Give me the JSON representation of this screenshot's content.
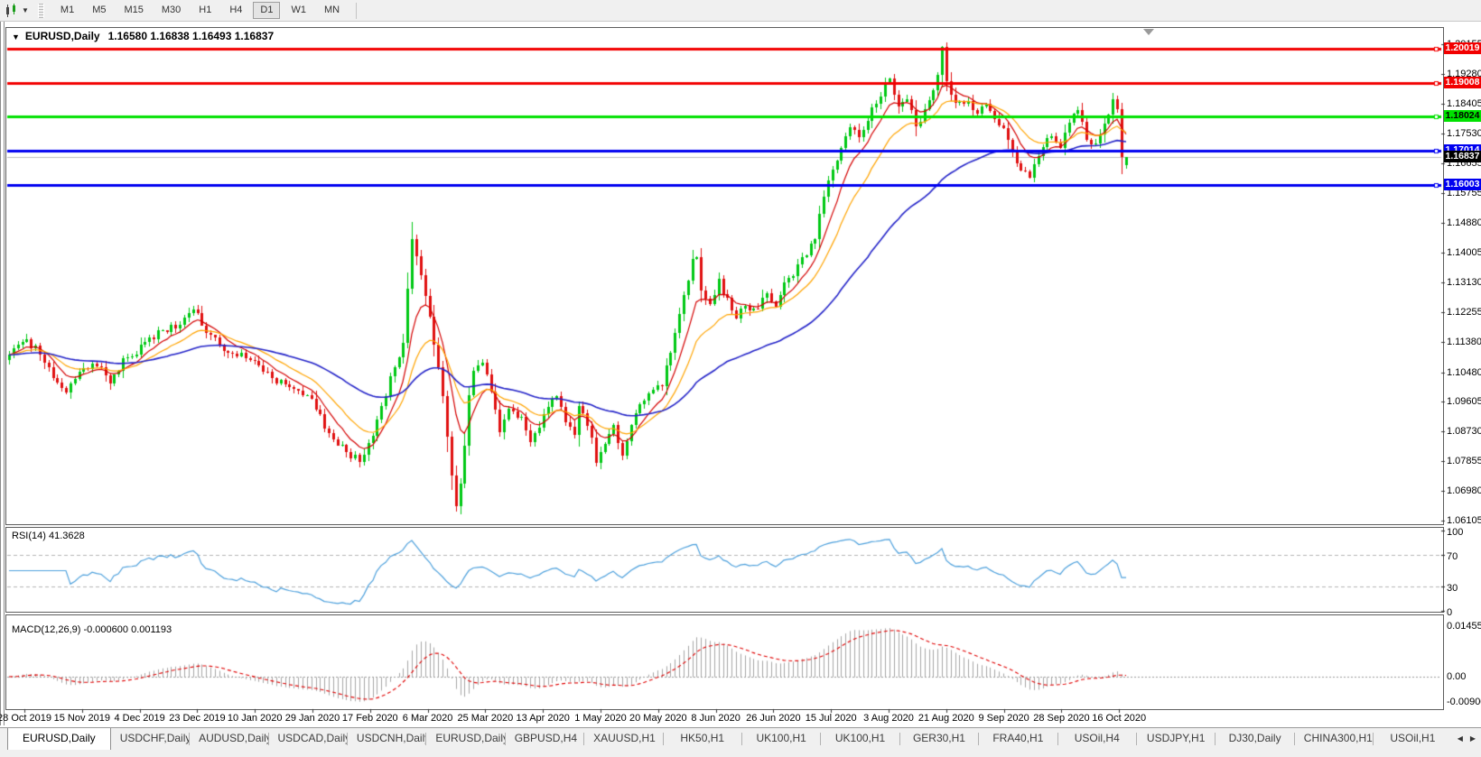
{
  "toolbar": {
    "timeframes": [
      {
        "label": "M1",
        "active": false
      },
      {
        "label": "M5",
        "active": false
      },
      {
        "label": "M15",
        "active": false
      },
      {
        "label": "M30",
        "active": false
      },
      {
        "label": "H1",
        "active": false
      },
      {
        "label": "H4",
        "active": false
      },
      {
        "label": "D1",
        "active": true
      },
      {
        "label": "W1",
        "active": false
      },
      {
        "label": "MN",
        "active": false
      }
    ]
  },
  "icons": {
    "collapse_caret": "▼",
    "dropdown_caret": "▼",
    "tab_scroll_left": "◀",
    "tab_scroll_right": "▶"
  },
  "chart": {
    "title": "EURUSD,Daily",
    "ohlc_text": "1.16580 1.16838 1.16493 1.16837",
    "price_axis_labels": [
      "1.20155",
      "1.19280",
      "1.18405",
      "1.17530",
      "1.16655",
      "1.15755",
      "1.14880",
      "1.14005",
      "1.13130",
      "1.12255",
      "1.11380",
      "1.10480",
      "1.09605",
      "1.08730",
      "1.07855",
      "1.06980",
      "1.06105"
    ]
  },
  "rsi": {
    "label_text": "RSI(14) 41.3628",
    "axis_labels": [
      {
        "text": "100",
        "value": 100
      },
      {
        "text": "70",
        "value": 70
      },
      {
        "text": "30",
        "value": 30
      },
      {
        "text": "0",
        "value": 0
      }
    ]
  },
  "macd": {
    "label_text": "MACD(12,26,9) -0.000600 0.001193",
    "axis_labels": [
      "0.014556",
      "0.00",
      "-0.00900"
    ]
  },
  "tabs": {
    "items": [
      {
        "label": "EURUSD,Daily",
        "active": true
      },
      {
        "label": "USDCHF,Daily",
        "active": false
      },
      {
        "label": "AUDUSD,Daily",
        "active": false
      },
      {
        "label": "USDCAD,Daily",
        "active": false
      },
      {
        "label": "USDCNH,Daily",
        "active": false
      },
      {
        "label": "EURUSD,Daily",
        "active": false
      },
      {
        "label": "GBPUSD,H4",
        "active": false
      },
      {
        "label": "XAUUSD,H1",
        "active": false
      },
      {
        "label": "HK50,H1",
        "active": false
      },
      {
        "label": "UK100,H1",
        "active": false
      },
      {
        "label": "UK100,H1",
        "active": false
      },
      {
        "label": "GER30,H1",
        "active": false
      },
      {
        "label": "FRA40,H1",
        "active": false
      },
      {
        "label": "USOil,H4",
        "active": false
      },
      {
        "label": "USDJPY,H1",
        "active": false
      },
      {
        "label": "DJ30,Daily",
        "active": false
      },
      {
        "label": "CHINA300,H1",
        "active": false
      },
      {
        "label": "USOil,H1",
        "active": false
      }
    ]
  },
  "colors": {
    "candle_up": "#00C814",
    "candle_down": "#E01010",
    "ma_fast": "#D40000",
    "ma_mid": "#FFA400",
    "ma_slow": "#2424C8",
    "current_price_line": "#BDBDBD",
    "current_price_badge_bg": "#000000",
    "rsi_line": "#4DA0DC",
    "macd_hist": "#A6A6A6",
    "macd_signal": "#E00000",
    "grid_dash": "#B4B4B4",
    "axis_text": "#000000",
    "toolbar_bg": "#f0f0f0"
  },
  "chart_data": {
    "type": "candlestick",
    "symbol": "EURUSD",
    "timeframe": "Daily",
    "last_candle": {
      "open": 1.1658,
      "high": 1.16838,
      "low": 1.16493,
      "close": 1.16837
    },
    "current_price": {
      "value": 1.16837,
      "label": "1.16837"
    },
    "y_axis": {
      "min": 1.06025,
      "max": 1.20398
    },
    "x_labels": [
      "28 Oct 2019",
      "15 Nov 2019",
      "4 Dec 2019",
      "23 Dec 2019",
      "10 Jan 2020",
      "29 Jan 2020",
      "17 Feb 2020",
      "6 Mar 2020",
      "25 Mar 2020",
      "13 Apr 2020",
      "1 May 2020",
      "20 May 2020",
      "8 Jun 2020",
      "26 Jun 2020",
      "15 Jul 2020",
      "3 Aug 2020",
      "21 Aug 2020",
      "9 Sep 2020",
      "28 Sep 2020",
      "16 Oct 2020"
    ],
    "candle_count": 256,
    "close_anchors": [
      [
        0,
        1.1095
      ],
      [
        3,
        1.115
      ],
      [
        6,
        1.112
      ],
      [
        10,
        1.103
      ],
      [
        13,
        1.1
      ],
      [
        16,
        1.106
      ],
      [
        20,
        1.1075
      ],
      [
        23,
        1.101
      ],
      [
        26,
        1.108
      ],
      [
        30,
        1.112
      ],
      [
        35,
        1.1175
      ],
      [
        39,
        1.119
      ],
      [
        42,
        1.1235
      ],
      [
        45,
        1.116
      ],
      [
        49,
        1.112
      ],
      [
        52,
        1.1105
      ],
      [
        56,
        1.109
      ],
      [
        60,
        1.103
      ],
      [
        65,
        1.101
      ],
      [
        69,
        1.096
      ],
      [
        73,
        1.087
      ],
      [
        78,
        1.08
      ],
      [
        80,
        1.079
      ],
      [
        83,
        1.0855
      ],
      [
        86,
        1.0985
      ],
      [
        88,
        1.1065
      ],
      [
        90,
        1.114
      ],
      [
        91,
        1.129
      ],
      [
        92,
        1.145
      ],
      [
        93,
        1.139
      ],
      [
        95,
        1.128
      ],
      [
        97,
        1.113
      ],
      [
        99,
        1.098
      ],
      [
        101,
        1.074
      ],
      [
        102,
        1.066
      ],
      [
        103,
        1.073
      ],
      [
        104,
        1.083
      ],
      [
        105,
        1.0985
      ],
      [
        106,
        1.1045
      ],
      [
        108,
        1.108
      ],
      [
        110,
        1.0985
      ],
      [
        112,
        1.087
      ],
      [
        114,
        1.095
      ],
      [
        117,
        1.091
      ],
      [
        119,
        1.085
      ],
      [
        121,
        1.089
      ],
      [
        123,
        1.094
      ],
      [
        125,
        1.098
      ],
      [
        127,
        1.09
      ],
      [
        129,
        1.086
      ],
      [
        130,
        1.095
      ],
      [
        132,
        1.09
      ],
      [
        134,
        1.079
      ],
      [
        136,
        1.083
      ],
      [
        138,
        1.089
      ],
      [
        140,
        1.081
      ],
      [
        142,
        1.088
      ],
      [
        143,
        1.093
      ],
      [
        145,
        1.096
      ],
      [
        147,
        1.099
      ],
      [
        149,
        1.101
      ],
      [
        151,
        1.111
      ],
      [
        153,
        1.123
      ],
      [
        155,
        1.133
      ],
      [
        156,
        1.137
      ],
      [
        157,
        1.139
      ],
      [
        158,
        1.13
      ],
      [
        160,
        1.125
      ],
      [
        162,
        1.132
      ],
      [
        164,
        1.126
      ],
      [
        166,
        1.12
      ],
      [
        168,
        1.125
      ],
      [
        169,
        1.122
      ],
      [
        171,
        1.124
      ],
      [
        173,
        1.129
      ],
      [
        175,
        1.124
      ],
      [
        177,
        1.131
      ],
      [
        179,
        1.134
      ],
      [
        181,
        1.138
      ],
      [
        182,
        1.14
      ],
      [
        184,
        1.145
      ],
      [
        186,
        1.156
      ],
      [
        188,
        1.165
      ],
      [
        190,
        1.172
      ],
      [
        192,
        1.178
      ],
      [
        194,
        1.174
      ],
      [
        195,
        1.177
      ],
      [
        197,
        1.182
      ],
      [
        199,
        1.187
      ],
      [
        201,
        1.191
      ],
      [
        203,
        1.182
      ],
      [
        205,
        1.185
      ],
      [
        207,
        1.178
      ],
      [
        208,
        1.179
      ],
      [
        210,
        1.186
      ],
      [
        212,
        1.192
      ],
      [
        213,
        1.2
      ],
      [
        214,
        1.19
      ],
      [
        216,
        1.183
      ],
      [
        218,
        1.185
      ],
      [
        220,
        1.183
      ],
      [
        221,
        1.181
      ],
      [
        223,
        1.185
      ],
      [
        225,
        1.18
      ],
      [
        227,
        1.176
      ],
      [
        229,
        1.17
      ],
      [
        231,
        1.164
      ],
      [
        233,
        1.1625
      ],
      [
        234,
        1.167
      ],
      [
        236,
        1.172
      ],
      [
        238,
        1.175
      ],
      [
        240,
        1.172
      ],
      [
        242,
        1.178
      ],
      [
        244,
        1.182
      ],
      [
        246,
        1.174
      ],
      [
        247,
        1.171
      ],
      [
        249,
        1.175
      ],
      [
        251,
        1.18
      ],
      [
        252,
        1.1845
      ],
      [
        253,
        1.182
      ],
      [
        254,
        1.168
      ],
      [
        255,
        1.16837
      ]
    ],
    "special_candles": [
      {
        "index": 92,
        "high": 1.1492
      },
      {
        "index": 102,
        "low": 1.0636
      },
      {
        "index": 213,
        "high": 1.2011
      },
      {
        "index": 255,
        "open": 1.1658,
        "high": 1.16838,
        "low": 1.16493,
        "close": 1.16837
      }
    ],
    "levels": [
      {
        "price": 1.20019,
        "label": "1.20019",
        "color": "#F20000",
        "text_color": "#ffffff"
      },
      {
        "price": 1.19008,
        "label": "1.19008",
        "color": "#F20000",
        "text_color": "#ffffff"
      },
      {
        "price": 1.18024,
        "label": "1.18024",
        "color": "#00E100",
        "text_color": "#000000"
      },
      {
        "price": 1.17014,
        "label": "1.17014",
        "color": "#0000F0",
        "text_color": "#ffffff"
      },
      {
        "price": 1.16003,
        "label": "1.16003",
        "color": "#0000F0",
        "text_color": "#ffffff"
      }
    ],
    "moving_averages": [
      {
        "type": "ema",
        "period": 8,
        "color": "#D40000",
        "width": 1.2
      },
      {
        "type": "ema",
        "period": 17,
        "color": "#FFA400",
        "width": 1.2
      },
      {
        "type": "ema",
        "period": 52,
        "color": "#2424C8",
        "width": 1.6
      }
    ],
    "rsi": {
      "period": 14,
      "current": 41.3628,
      "levels": [
        70,
        30
      ],
      "range": [
        0,
        100
      ]
    },
    "macd": {
      "fast": 12,
      "slow": 26,
      "signal": 9,
      "current_macd": -0.0006,
      "current_signal": 0.001193
    }
  }
}
